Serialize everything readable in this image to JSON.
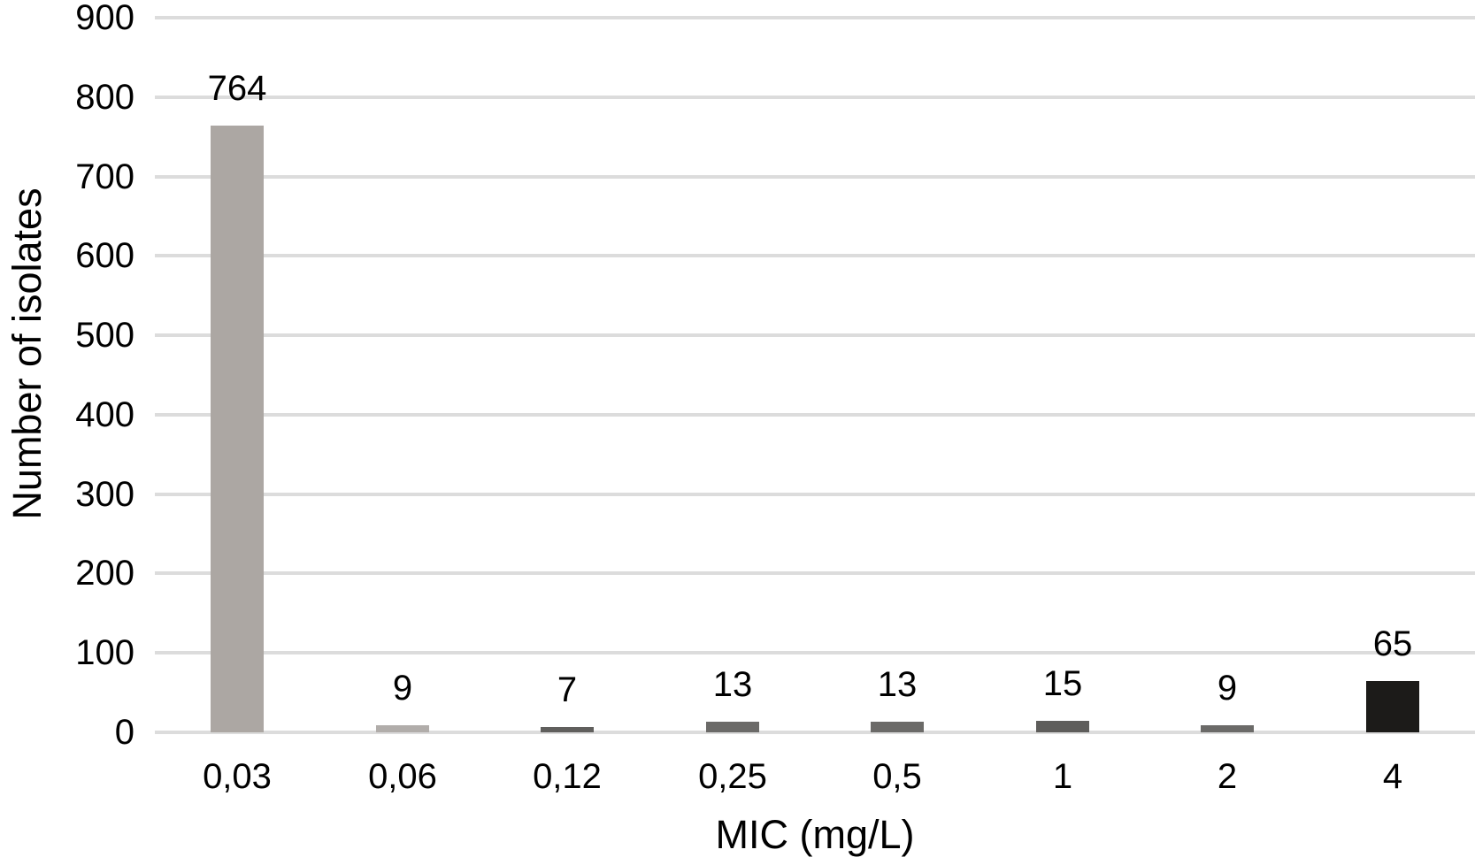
{
  "chart_data": {
    "type": "bar",
    "title": "",
    "xlabel": "MIC (mg/L)",
    "ylabel": "Number of isolates",
    "categories": [
      "0,03",
      "0,06",
      "0,12",
      "0,25",
      "0,5",
      "1",
      "2",
      "4"
    ],
    "values": [
      764,
      9,
      7,
      13,
      13,
      15,
      9,
      65
    ],
    "data_labels": [
      "764",
      "9",
      "7",
      "13",
      "13",
      "15",
      "9",
      "65"
    ],
    "bar_colors": [
      "#aca7a3",
      "#b1adaa",
      "#605f5d",
      "#6b6a68",
      "#6b6a68",
      "#5e5d5b",
      "#6b6a68",
      "#1c1b19"
    ],
    "ylim": [
      0,
      900
    ],
    "yticks": [
      0,
      100,
      200,
      300,
      400,
      500,
      600,
      700,
      800,
      900
    ],
    "grid": true,
    "gridline_color": "#dcdcdc",
    "background_color": "#ffffff",
    "text_color": "#000000",
    "legend": null
  }
}
